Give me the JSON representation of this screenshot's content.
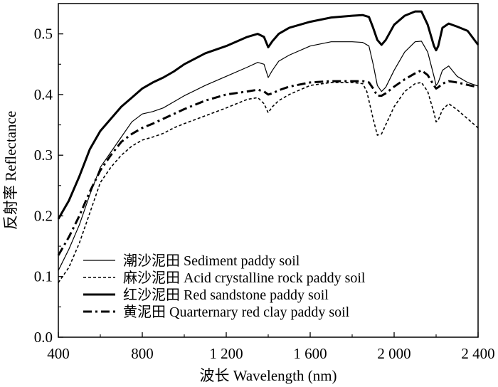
{
  "chart_data": {
    "type": "line",
    "xlabel": "波长 Wavelength (nm)",
    "ylabel": "反射率 Reflectance",
    "xlim": [
      400,
      2400
    ],
    "ylim": [
      0.0,
      0.55
    ],
    "x_ticks": [
      400,
      800,
      1200,
      1600,
      2000,
      2400
    ],
    "x_tick_labels": [
      "400",
      "800",
      "1 200",
      "1 600",
      "2 000",
      "2 400"
    ],
    "y_ticks": [
      0.0,
      0.1,
      0.2,
      0.3,
      0.4,
      0.5
    ],
    "y_tick_labels": [
      "0.0",
      "0.1",
      "0.2",
      "0.3",
      "0.4",
      "0.5"
    ],
    "legend_position": "bottom-left",
    "series": [
      {
        "name": "潮沙泥田 Sediment paddy soil",
        "style": "solid-thin",
        "color": "#000000",
        "x": [
          400,
          450,
          500,
          550,
          600,
          650,
          700,
          750,
          800,
          850,
          900,
          950,
          1000,
          1100,
          1200,
          1300,
          1350,
          1380,
          1400,
          1420,
          1450,
          1500,
          1600,
          1700,
          1800,
          1850,
          1880,
          1900,
          1920,
          1940,
          1960,
          2000,
          2050,
          2100,
          2130,
          2160,
          2190,
          2200,
          2210,
          2230,
          2260,
          2300,
          2350,
          2400
        ],
        "y": [
          0.11,
          0.145,
          0.185,
          0.235,
          0.28,
          0.305,
          0.33,
          0.355,
          0.368,
          0.372,
          0.378,
          0.388,
          0.398,
          0.415,
          0.43,
          0.445,
          0.453,
          0.45,
          0.428,
          0.44,
          0.455,
          0.465,
          0.48,
          0.487,
          0.487,
          0.486,
          0.48,
          0.45,
          0.415,
          0.405,
          0.412,
          0.44,
          0.47,
          0.487,
          0.488,
          0.47,
          0.43,
          0.415,
          0.42,
          0.44,
          0.447,
          0.43,
          0.42,
          0.414
        ]
      },
      {
        "name": "麻沙泥田 Acid crystalline rock paddy soil",
        "style": "dashed",
        "color": "#000000",
        "x": [
          400,
          450,
          500,
          550,
          600,
          650,
          700,
          750,
          800,
          850,
          900,
          950,
          1000,
          1100,
          1200,
          1300,
          1350,
          1380,
          1400,
          1420,
          1450,
          1500,
          1600,
          1700,
          1800,
          1850,
          1870,
          1900,
          1920,
          1940,
          1960,
          2000,
          2050,
          2100,
          2130,
          2160,
          2190,
          2200,
          2210,
          2230,
          2260,
          2300,
          2350,
          2400
        ],
        "y": [
          0.09,
          0.115,
          0.155,
          0.205,
          0.255,
          0.28,
          0.3,
          0.315,
          0.325,
          0.33,
          0.336,
          0.345,
          0.352,
          0.365,
          0.378,
          0.392,
          0.395,
          0.385,
          0.37,
          0.38,
          0.39,
          0.4,
          0.415,
          0.42,
          0.42,
          0.418,
          0.405,
          0.36,
          0.333,
          0.335,
          0.35,
          0.38,
          0.405,
          0.418,
          0.42,
          0.405,
          0.37,
          0.355,
          0.358,
          0.375,
          0.385,
          0.375,
          0.36,
          0.345
        ]
      },
      {
        "name": "红沙泥田 Red sandstone paddy soil",
        "style": "solid-thick",
        "color": "#000000",
        "x": [
          400,
          450,
          500,
          550,
          600,
          650,
          700,
          750,
          800,
          850,
          900,
          950,
          1000,
          1100,
          1200,
          1300,
          1350,
          1380,
          1400,
          1420,
          1450,
          1500,
          1600,
          1700,
          1800,
          1850,
          1880,
          1900,
          1920,
          1940,
          1960,
          2000,
          2050,
          2100,
          2130,
          2160,
          2190,
          2200,
          2210,
          2230,
          2260,
          2300,
          2350,
          2400
        ],
        "y": [
          0.195,
          0.225,
          0.265,
          0.31,
          0.34,
          0.36,
          0.38,
          0.395,
          0.41,
          0.42,
          0.428,
          0.438,
          0.45,
          0.468,
          0.48,
          0.495,
          0.5,
          0.495,
          0.478,
          0.488,
          0.5,
          0.51,
          0.52,
          0.527,
          0.53,
          0.531,
          0.528,
          0.51,
          0.49,
          0.482,
          0.49,
          0.515,
          0.53,
          0.537,
          0.537,
          0.515,
          0.48,
          0.473,
          0.48,
          0.51,
          0.517,
          0.512,
          0.505,
          0.482
        ]
      },
      {
        "name": "黄泥田 Quarternary red clay paddy soil",
        "style": "dash-dot",
        "color": "#000000",
        "x": [
          400,
          450,
          500,
          550,
          600,
          650,
          700,
          750,
          800,
          850,
          900,
          950,
          1000,
          1100,
          1200,
          1300,
          1350,
          1380,
          1400,
          1420,
          1450,
          1500,
          1600,
          1700,
          1800,
          1850,
          1880,
          1900,
          1920,
          1940,
          1960,
          2000,
          2050,
          2100,
          2130,
          2160,
          2190,
          2200,
          2210,
          2230,
          2260,
          2300,
          2350,
          2400
        ],
        "y": [
          0.135,
          0.165,
          0.2,
          0.24,
          0.275,
          0.3,
          0.322,
          0.335,
          0.345,
          0.352,
          0.36,
          0.368,
          0.376,
          0.39,
          0.4,
          0.405,
          0.408,
          0.405,
          0.4,
          0.402,
          0.407,
          0.413,
          0.42,
          0.422,
          0.422,
          0.422,
          0.42,
          0.41,
          0.398,
          0.398,
          0.402,
          0.413,
          0.425,
          0.435,
          0.44,
          0.432,
          0.415,
          0.41,
          0.412,
          0.418,
          0.422,
          0.42,
          0.416,
          0.412
        ]
      }
    ]
  }
}
